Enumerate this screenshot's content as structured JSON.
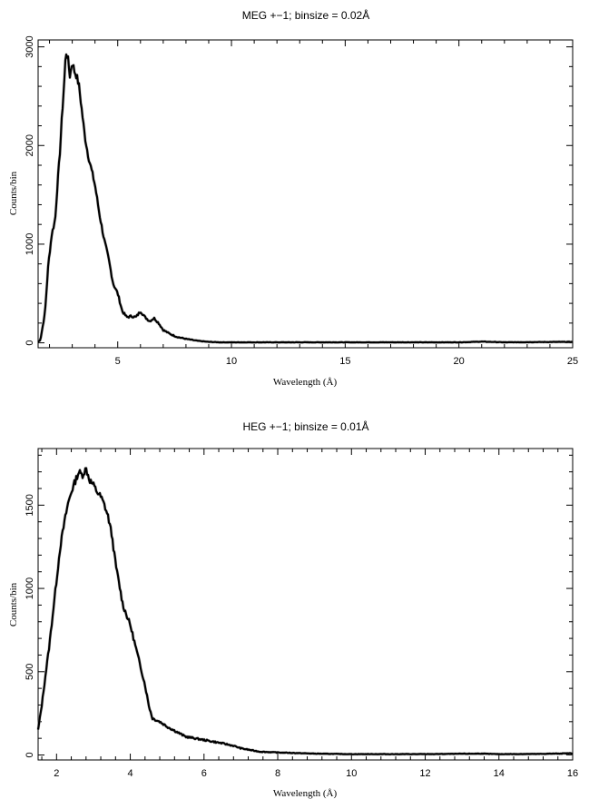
{
  "chart_data": [
    {
      "type": "line",
      "title": "MEG +−1; binsize = 0.02Å",
      "xlabel": "Wavelength (Å)",
      "ylabel": "Counts/bin",
      "xlim": [
        1.5,
        25
      ],
      "ylim": [
        -50,
        3070
      ],
      "xticks": [
        5,
        10,
        15,
        20,
        25
      ],
      "yticks": [
        0,
        1000,
        2000,
        3000
      ],
      "grid": false,
      "series": [
        {
          "x": [
            1.5,
            1.6,
            1.8,
            1.95,
            2.1,
            2.25,
            2.35,
            2.45,
            2.55,
            2.65,
            2.72,
            2.8,
            2.9,
            3.0,
            3.1,
            3.2,
            3.3,
            3.4,
            3.55,
            3.7,
            3.85,
            4.0,
            4.2,
            4.4,
            4.6,
            4.8,
            5.0,
            5.2,
            5.4,
            5.6,
            5.8,
            6.0,
            6.2,
            6.4,
            6.6,
            6.8,
            7.0,
            7.3,
            7.6,
            8.0,
            8.5,
            9.0,
            9.5,
            10,
            12,
            15,
            18,
            20,
            21,
            22,
            25
          ],
          "y": [
            10,
            30,
            300,
            800,
            1100,
            1250,
            1600,
            1900,
            2300,
            2650,
            2950,
            2900,
            2700,
            2850,
            2750,
            2700,
            2600,
            2400,
            2100,
            1900,
            1750,
            1600,
            1300,
            1050,
            850,
            600,
            500,
            320,
            260,
            270,
            260,
            320,
            260,
            220,
            250,
            200,
            130,
            90,
            60,
            40,
            20,
            10,
            5,
            5,
            5,
            5,
            5,
            5,
            12,
            5,
            10
          ]
        }
      ]
    },
    {
      "type": "line",
      "title": "HEG +−1; binsize = 0.01Å",
      "xlabel": "Wavelength (Å)",
      "ylabel": "Counts/bin",
      "xlim": [
        1.5,
        16
      ],
      "ylim": [
        -30,
        1840
      ],
      "xticks": [
        2,
        4,
        6,
        8,
        10,
        12,
        14,
        16
      ],
      "yticks": [
        0,
        500,
        1000,
        1500
      ],
      "grid": false,
      "series": [
        {
          "x": [
            1.5,
            1.6,
            1.7,
            1.8,
            1.9,
            2.0,
            2.1,
            2.2,
            2.3,
            2.4,
            2.5,
            2.6,
            2.7,
            2.8,
            2.9,
            3.0,
            3.1,
            3.2,
            3.3,
            3.4,
            3.5,
            3.6,
            3.8,
            4.0,
            4.2,
            4.4,
            4.5,
            4.6,
            4.8,
            5.0,
            5.5,
            6.0,
            6.5,
            6.8,
            7.0,
            7.5,
            8.0,
            9.0,
            10,
            12,
            13.5,
            14,
            15,
            16
          ],
          "y": [
            150,
            300,
            480,
            650,
            850,
            1050,
            1250,
            1380,
            1500,
            1580,
            1640,
            1700,
            1680,
            1720,
            1650,
            1620,
            1580,
            1550,
            1500,
            1430,
            1320,
            1150,
            900,
            780,
            600,
            420,
            300,
            220,
            200,
            170,
            110,
            90,
            70,
            55,
            40,
            20,
            15,
            8,
            5,
            5,
            8,
            5,
            6,
            10
          ]
        }
      ]
    }
  ]
}
